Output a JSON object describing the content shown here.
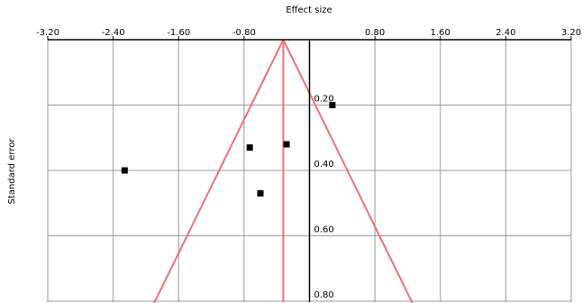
{
  "chart_data": {
    "type": "scatter",
    "subtype": "funnel-plot",
    "xlabel": "Effect size",
    "ylabel": "Standard error",
    "xlim": [
      -3.2,
      3.2
    ],
    "ylim": [
      0.0,
      0.8
    ],
    "y_inverted": true,
    "x_ticks": [
      "-3.20",
      "-2.40",
      "-1.60",
      "-0.80",
      "0.00",
      "0.80",
      "1.60",
      "2.40",
      "3.20"
    ],
    "y_ticks": [
      "0.20",
      "0.40",
      "0.60",
      "0.80"
    ],
    "grid": true,
    "x_axis_position": "top",
    "y_tick_labels_position": "at x = 0",
    "points": [
      {
        "x": 0.28,
        "y": 0.2
      },
      {
        "x": -0.73,
        "y": 0.33
      },
      {
        "x": -0.28,
        "y": 0.32
      },
      {
        "x": -2.26,
        "y": 0.4
      },
      {
        "x": -0.6,
        "y": 0.47
      }
    ],
    "pooled_effect": -0.32,
    "funnel_lines": {
      "color": "#f07070",
      "apex": {
        "x": -0.32,
        "y": 0.0
      },
      "limit_multiplier": 1.96
    },
    "marker_color": "#000000",
    "grid_color": "#999999"
  }
}
